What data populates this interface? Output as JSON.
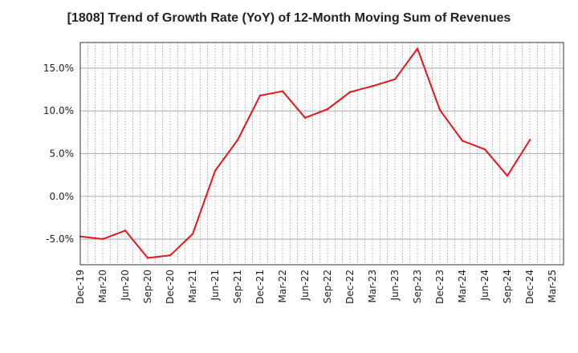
{
  "chart_data": {
    "type": "line",
    "title": "[1808]  Trend of Growth Rate (YoY) of 12-Month Moving Sum of Revenues",
    "xlabel": "",
    "ylabel": "",
    "x_tick_labels": [
      "Dec-19",
      "Mar-20",
      "Jun-20",
      "Sep-20",
      "Dec-20",
      "Mar-21",
      "Jun-21",
      "Sep-21",
      "Dec-21",
      "Mar-22",
      "Jun-22",
      "Sep-22",
      "Dec-22",
      "Mar-23",
      "Jun-23",
      "Sep-23",
      "Dec-23",
      "Mar-24",
      "Jun-24",
      "Sep-24",
      "Dec-24",
      "Mar-25"
    ],
    "y_ticks": [
      -5,
      0,
      5,
      10,
      15
    ],
    "y_tick_labels": [
      "-5.0%",
      "0.0%",
      "5.0%",
      "10.0%",
      "15.0%"
    ],
    "ylim": [
      -8,
      18
    ],
    "grid": true,
    "line_color": "#e8141b",
    "series": [
      {
        "x": [
          "Dec-19",
          "Mar-20",
          "Jun-20",
          "Sep-20",
          "Dec-20",
          "Mar-21",
          "Jun-21",
          "Sep-21",
          "Dec-21",
          "Mar-22",
          "Jun-22",
          "Sep-22",
          "Dec-22",
          "Mar-23",
          "Jun-23",
          "Sep-23",
          "Dec-23",
          "Mar-24",
          "Jun-24",
          "Sep-24",
          "Dec-24"
        ],
        "values": [
          -4.7,
          -5.0,
          -4.0,
          -7.2,
          -6.9,
          -4.4,
          3.0,
          6.6,
          11.8,
          12.3,
          9.2,
          10.2,
          12.2,
          12.9,
          13.7,
          17.3,
          10.1,
          6.5,
          5.5,
          2.4,
          6.6
        ]
      }
    ]
  }
}
